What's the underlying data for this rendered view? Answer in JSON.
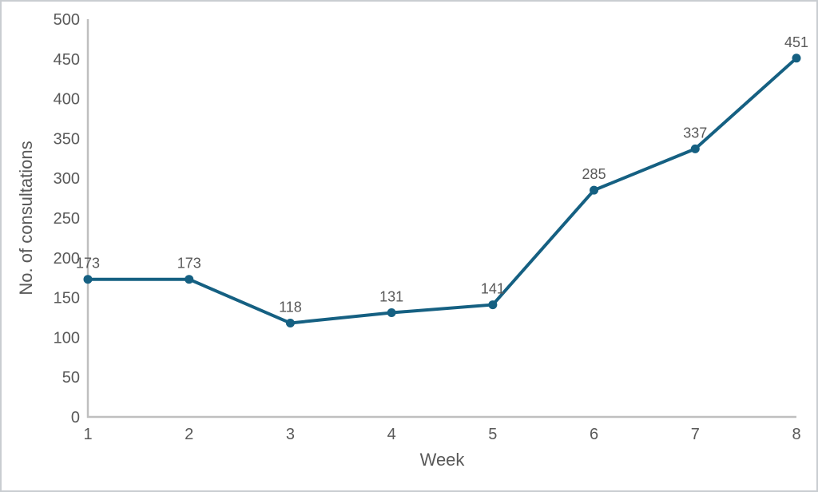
{
  "chart_data": {
    "type": "line",
    "title": "",
    "xlabel": "Week",
    "ylabel": "No. of consultations",
    "x": [
      1,
      2,
      3,
      4,
      5,
      6,
      7,
      8
    ],
    "values": [
      173,
      173,
      118,
      131,
      141,
      285,
      337,
      451
    ],
    "data_labels": [
      "173",
      "173",
      "118",
      "131",
      "141",
      "285",
      "337",
      "451"
    ],
    "ylim": [
      0,
      500
    ],
    "ytick_step": 50,
    "yticks": [
      0,
      50,
      100,
      150,
      200,
      250,
      300,
      350,
      400,
      450,
      500
    ],
    "grid": false,
    "legend": "none",
    "colors": {
      "line": "#156082",
      "marker": "#156082",
      "axis_line": "#bfbfbf",
      "text": "#595959",
      "background": "#ffffff",
      "border": "#c9cdd1"
    }
  }
}
